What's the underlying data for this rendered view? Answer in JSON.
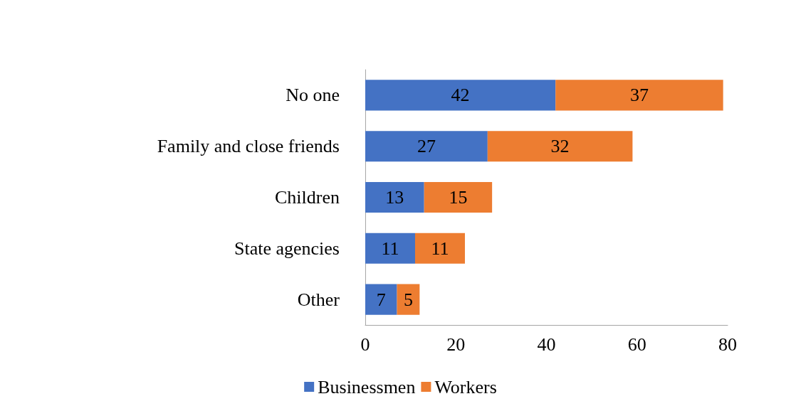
{
  "chart_data": {
    "type": "bar",
    "orientation": "horizontal",
    "stacked": true,
    "categories": [
      "No one",
      "Family and close friends",
      "Children",
      "State agencies",
      "Other"
    ],
    "series": [
      {
        "name": "Businessmen",
        "color": "#4472c4",
        "values": [
          42,
          27,
          13,
          11,
          7
        ]
      },
      {
        "name": "Workers",
        "color": "#ed7d31",
        "values": [
          37,
          32,
          15,
          11,
          5
        ]
      }
    ],
    "xlim": [
      0,
      80
    ],
    "xticks": [
      0,
      20,
      40,
      60,
      80
    ],
    "grid": false,
    "legend": "bottom",
    "data_labels": true
  }
}
